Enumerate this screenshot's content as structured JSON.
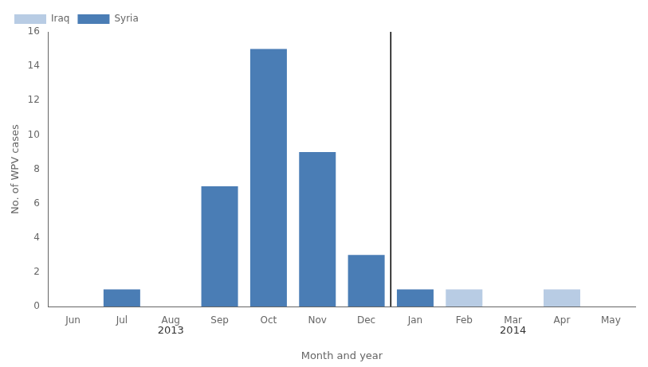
{
  "chart_data": {
    "type": "bar",
    "categories": [
      "Jun",
      "Jul",
      "Aug",
      "Sep",
      "Oct",
      "Nov",
      "Dec",
      "Jan",
      "Feb",
      "Mar",
      "Apr",
      "May"
    ],
    "series": [
      {
        "name": "Syria",
        "color": "#4a7db5",
        "values": [
          0,
          1,
          0,
          7,
          15,
          9,
          3,
          1,
          0,
          0,
          0,
          0
        ]
      },
      {
        "name": "Iraq",
        "color": "#b8cce4",
        "values": [
          0,
          0,
          0,
          0,
          0,
          0,
          0,
          0,
          1,
          0,
          1,
          0
        ]
      }
    ],
    "xlabel": "Month and year",
    "ylabel": "No. of WPV cases",
    "ylim": [
      0,
      16
    ],
    "yticks": [
      0,
      2,
      4,
      6,
      8,
      10,
      12,
      14,
      16
    ],
    "grid": false,
    "legend": "upper left",
    "annotations": [
      {
        "text": "2013",
        "x": 2.0
      },
      {
        "text": "2014",
        "x": 9.0
      },
      {
        "type": "vline",
        "x": 6.5
      }
    ]
  }
}
